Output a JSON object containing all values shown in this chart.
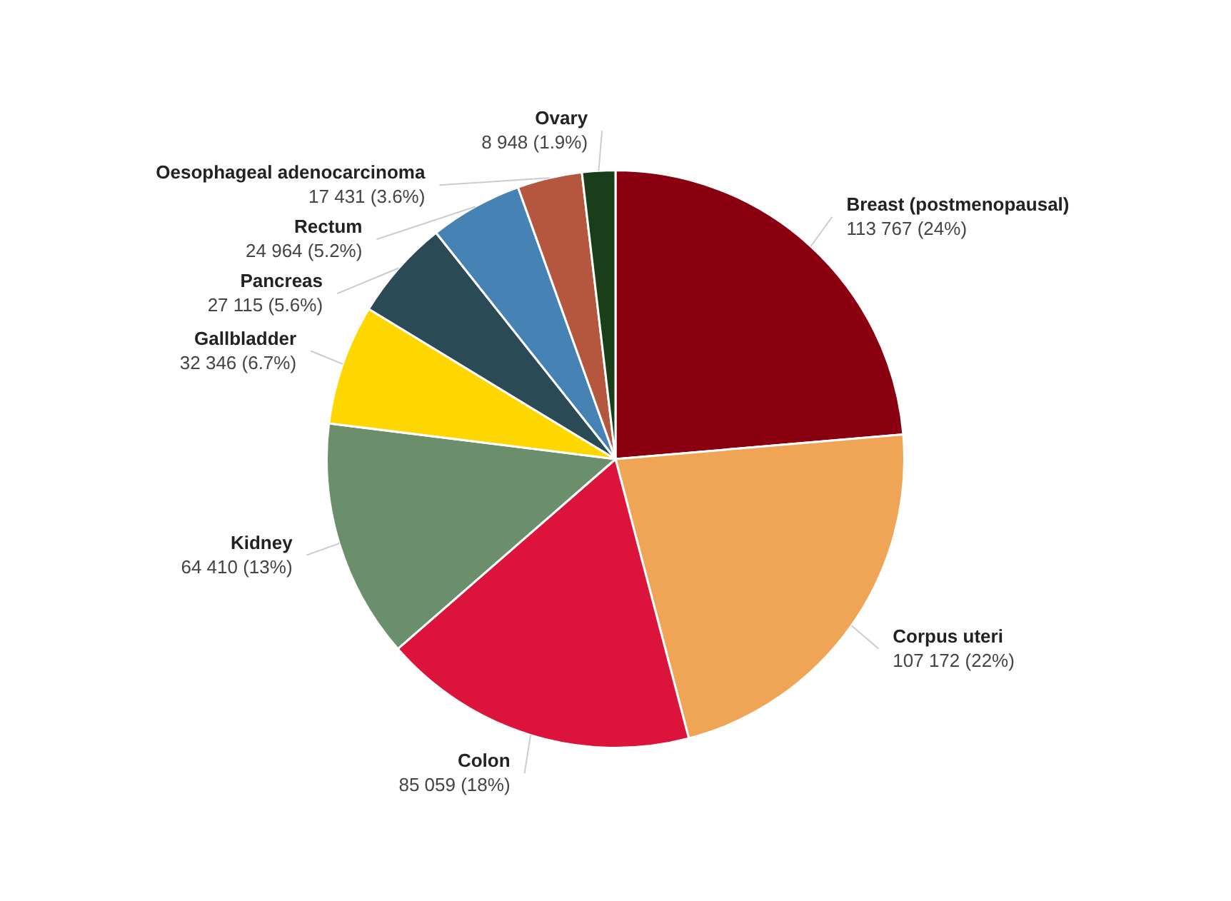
{
  "chart_data": {
    "type": "pie",
    "categories": [
      "Breast (postmenopausal)",
      "Corpus uteri",
      "Colon",
      "Kidney",
      "Gallbladder",
      "Pancreas",
      "Rectum",
      "Oesophageal adenocarcinoma",
      "Ovary"
    ],
    "values": [
      113767,
      107172,
      85059,
      64410,
      32346,
      27115,
      24964,
      17431,
      8948
    ],
    "value_labels": [
      "113 767 (24%)",
      "107 172 (22%)",
      "85 059 (18%)",
      "64 410 (13%)",
      "32 346 (6.7%)",
      "27 115 (5.6%)",
      "24 964 (5.2%)",
      "17 431 (3.6%)",
      "8 948 (1.9%)"
    ],
    "colors": [
      "#8b0010",
      "#f0a556",
      "#dc143c",
      "#6b8e6b",
      "#ffd700",
      "#2a4a55",
      "#4682b4",
      "#b5573e",
      "#1a3d1a"
    ],
    "legend": false
  }
}
